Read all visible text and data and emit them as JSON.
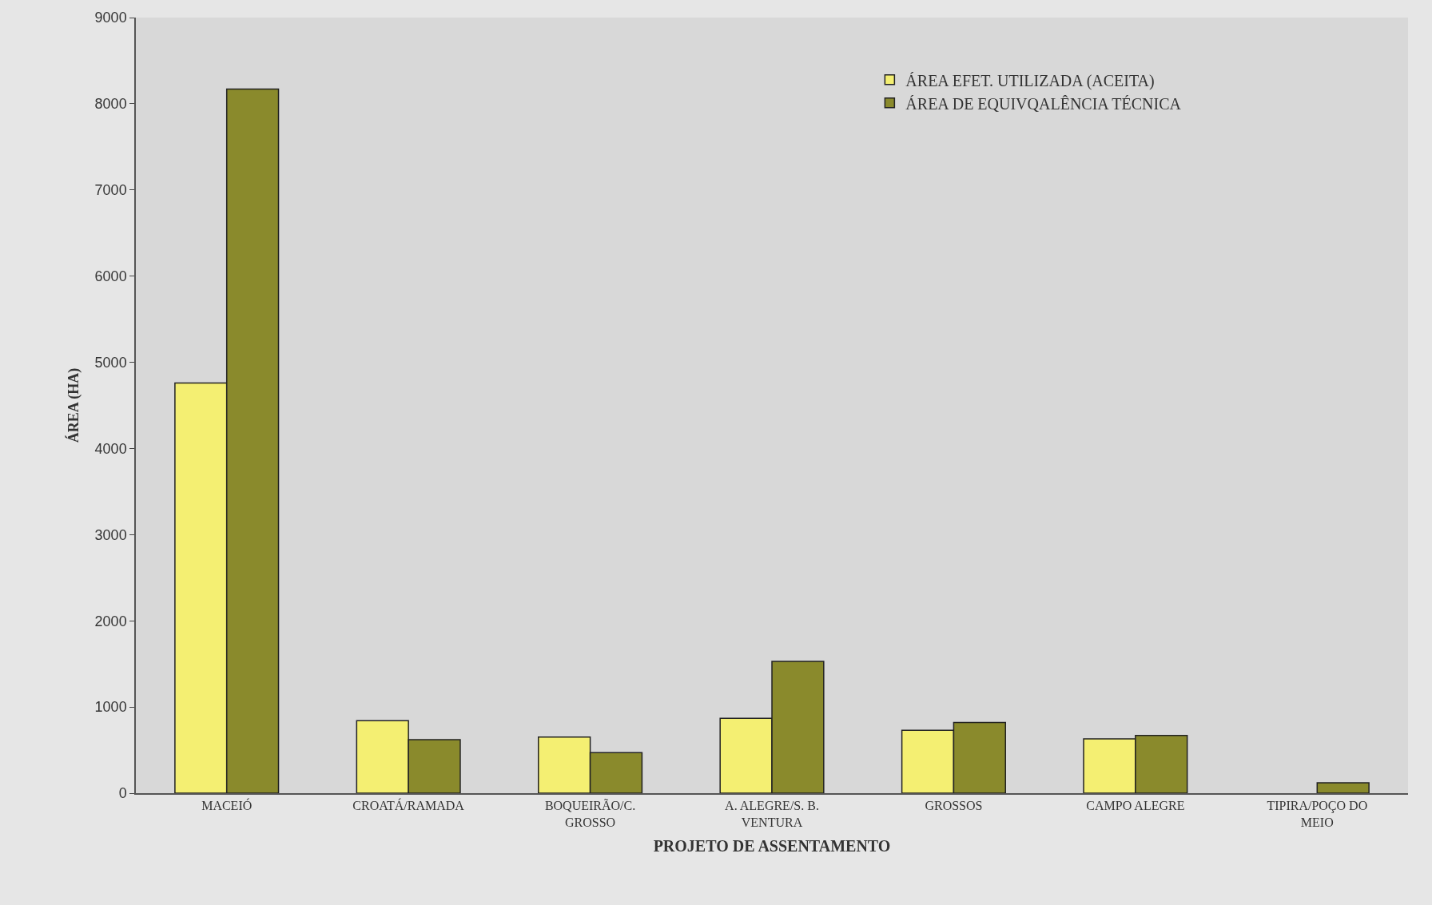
{
  "chart_data": {
    "type": "bar",
    "xlabel": "PROJETO DE ASSENTAMENTO",
    "ylabel": "ÁREA (HA)",
    "categories": [
      "MACEIÓ",
      "CROATÁ/RAMADA",
      "BOQUEIRÃO/C. GROSSO",
      "A. ALEGRE/S. B. VENTURA",
      "GROSSOS",
      "CAMPO ALEGRE",
      "TIPIRA/POÇO DO MEIO"
    ],
    "series": [
      {
        "name": "ÁREA EFET. UTILIZADA (ACEITA)",
        "color": "#f4ef72",
        "values": [
          4760,
          840,
          650,
          870,
          730,
          630,
          null
        ]
      },
      {
        "name": "ÁREA DE EQUIVQALÊNCIA TÉCNICA",
        "color": "#8a8a2c",
        "values": [
          8170,
          620,
          470,
          1530,
          820,
          670,
          120
        ]
      }
    ],
    "ylim": [
      0,
      9000
    ],
    "yticks": [
      0,
      1000,
      2000,
      3000,
      4000,
      5000,
      6000,
      7000,
      8000,
      9000
    ],
    "grid": false,
    "legend": "top right"
  }
}
